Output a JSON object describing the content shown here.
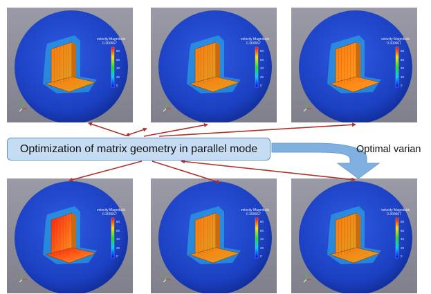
{
  "main_label": "Optimization of matrix geometry in parallel mode",
  "optimal_label": "Optimal varian",
  "panels": [
    {
      "legend_title": "velocity Magnitude",
      "legend_max": "0.300667",
      "ticks": [
        "80",
        "60",
        "40",
        "20",
        "0"
      ]
    },
    {
      "legend_title": "velocity Magnitude",
      "legend_max": "0.300667",
      "ticks": [
        "80",
        "60",
        "40",
        "20",
        "0"
      ]
    },
    {
      "legend_title": "velocity Magnitude",
      "legend_max": "0.300667",
      "ticks": [
        "80",
        "60",
        "40",
        "20",
        "0"
      ]
    },
    {
      "legend_title": "velocity Magnitude",
      "legend_max": "0.300667",
      "ticks": [
        "80",
        "60",
        "40",
        "20",
        "0"
      ]
    },
    {
      "legend_title": "velocity Magnitude",
      "legend_max": "0.300667",
      "ticks": [
        "80",
        "60",
        "40",
        "20",
        "0"
      ]
    },
    {
      "legend_title": "velocity Magnitude",
      "legend_max": "0.300667",
      "ticks": [
        "80",
        "60",
        "40",
        "20",
        "0"
      ]
    }
  ],
  "colors": {
    "sphere": "#1f47c8",
    "arrow": "#b0302a",
    "big_arrow": "#7fb0e0",
    "box_fill": "#c6dcf3",
    "box_border": "#5b8fcf"
  }
}
